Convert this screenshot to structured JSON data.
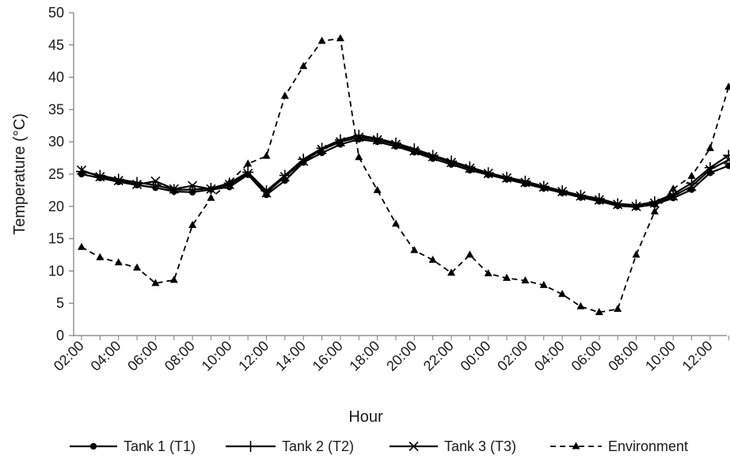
{
  "chart_data": {
    "type": "line",
    "xlabel": "Hour",
    "ylabel": "Temperature (°C)",
    "ylim": [
      0,
      50
    ],
    "yticks": [
      "0",
      "5",
      "10",
      "15",
      "20",
      "25",
      "30",
      "35",
      "40",
      "45",
      "50"
    ],
    "xtick_labels": [
      "02:00",
      "04:00",
      "06:00",
      "08:00",
      "10:00",
      "12:00",
      "14:00",
      "16:00",
      "18:00",
      "20:00",
      "22:00",
      "00:00",
      "02:00",
      "04:00",
      "06:00",
      "08:00",
      "10:00",
      "12:00"
    ],
    "x": [
      "02:00",
      "03:00",
      "04:00",
      "05:00",
      "06:00",
      "07:00",
      "08:00",
      "09:00",
      "10:00",
      "11:00",
      "12:00",
      "13:00",
      "14:00",
      "15:00",
      "16:00",
      "17:00",
      "18:00",
      "19:00",
      "20:00",
      "21:00",
      "22:00",
      "23:00",
      "00:00",
      "01:00",
      "02:00",
      "03:00",
      "04:00",
      "05:00",
      "06:00",
      "07:00",
      "08:00",
      "09:00",
      "10:00",
      "11:00",
      "12:00",
      "13:00"
    ],
    "grid": false,
    "legend_position": "bottom",
    "series": [
      {
        "name": "Tank 1 (T1)",
        "marker": "circle",
        "line_style": "solid",
        "color": "#000000",
        "values": [
          25.0,
          24.4,
          23.8,
          23.3,
          22.9,
          22.3,
          22.2,
          22.6,
          23.0,
          24.9,
          21.8,
          24.0,
          26.8,
          28.3,
          29.6,
          30.4,
          30.0,
          29.3,
          28.4,
          27.4,
          26.5,
          25.6,
          24.9,
          24.2,
          23.5,
          22.8,
          22.1,
          21.4,
          20.8,
          20.1,
          19.9,
          20.3,
          21.3,
          22.6,
          25.2,
          26.3
        ]
      },
      {
        "name": "Tank 2 (T2)",
        "marker": "plus",
        "line_style": "solid",
        "color": "#000000",
        "values": [
          25.4,
          24.8,
          24.2,
          23.7,
          23.3,
          22.6,
          22.6,
          22.8,
          23.6,
          25.3,
          22.4,
          24.8,
          27.3,
          29.0,
          30.3,
          31.0,
          30.5,
          29.8,
          28.9,
          27.9,
          27.0,
          26.1,
          25.2,
          24.5,
          23.9,
          23.1,
          22.4,
          21.7,
          21.2,
          20.4,
          20.2,
          20.7,
          21.9,
          23.6,
          26.0,
          27.9
        ]
      },
      {
        "name": "Tank 3 (T3)",
        "marker": "x",
        "line_style": "solid",
        "color": "#000000",
        "values": [
          25.6,
          24.6,
          24.0,
          23.4,
          23.9,
          22.7,
          23.2,
          22.7,
          23.4,
          25.1,
          22.1,
          24.6,
          27.0,
          28.8,
          30.0,
          30.7,
          30.3,
          29.6,
          28.6,
          27.7,
          26.8,
          25.9,
          25.1,
          24.4,
          23.7,
          23.0,
          22.3,
          21.6,
          21.0,
          20.3,
          20.0,
          20.5,
          21.6,
          23.1,
          25.7,
          27.2
        ]
      },
      {
        "name": "Environment",
        "marker": "triangle",
        "line_style": "dashed",
        "color": "#000000",
        "values": [
          13.7,
          12.1,
          11.3,
          10.5,
          8.1,
          8.6,
          17.1,
          21.3,
          23.7,
          26.6,
          27.8,
          37.1,
          41.7,
          45.6,
          46.0,
          27.6,
          22.5,
          17.3,
          13.2,
          11.7,
          9.7,
          12.5,
          9.6,
          8.9,
          8.5,
          7.8,
          6.4,
          4.5,
          3.6,
          4.1,
          12.5,
          19.2,
          22.7,
          24.7,
          29.0,
          38.5
        ]
      }
    ]
  }
}
